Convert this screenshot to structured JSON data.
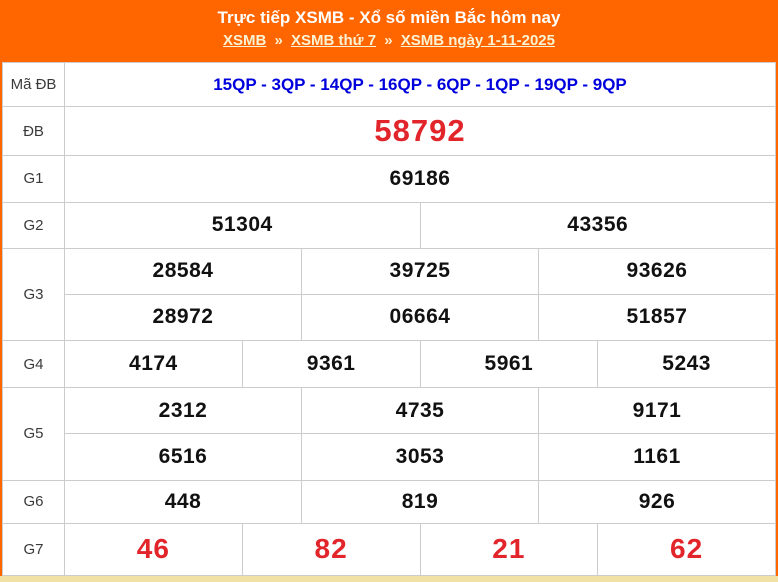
{
  "header": {
    "title": "Trực tiếp XSMB - Xổ số miền Bắc hôm nay",
    "separator": "»",
    "breadcrumb": [
      {
        "label": "XSMB"
      },
      {
        "label": "XSMB thứ 7"
      },
      {
        "label": "XSMB ngày 1-11-2025"
      }
    ]
  },
  "results_table": {
    "rows": [
      {
        "key": "ma-db",
        "label": "Mã ĐB",
        "lines": [
          [
            "15QP - 3QP - 14QP - 16QP - 6QP - 1QP - 19QP - 9QP"
          ]
        ]
      },
      {
        "key": "db",
        "label": "ĐB",
        "lines": [
          [
            "58792"
          ]
        ]
      },
      {
        "key": "g1",
        "label": "G1",
        "lines": [
          [
            "69186"
          ]
        ]
      },
      {
        "key": "g2",
        "label": "G2",
        "lines": [
          [
            "51304",
            "43356"
          ]
        ]
      },
      {
        "key": "g3",
        "label": "G3",
        "lines": [
          [
            "28584",
            "39725",
            "93626"
          ],
          [
            "28972",
            "06664",
            "51857"
          ]
        ]
      },
      {
        "key": "g4",
        "label": "G4",
        "lines": [
          [
            "4174",
            "9361",
            "5961",
            "5243"
          ]
        ]
      },
      {
        "key": "g5",
        "label": "G5",
        "lines": [
          [
            "2312",
            "4735",
            "9171"
          ],
          [
            "6516",
            "3053",
            "1161"
          ]
        ]
      },
      {
        "key": "g6",
        "label": "G6",
        "lines": [
          [
            "448",
            "819",
            "926"
          ]
        ]
      },
      {
        "key": "g7",
        "label": "G7",
        "lines": [
          [
            "46",
            "82",
            "21",
            "62"
          ]
        ]
      }
    ]
  },
  "colors": {
    "brand": "#FF6600",
    "crumb": "#FAF3D3",
    "hot-red": "#E2242B",
    "code-blue": "#0000DD",
    "strip": "#F1E1A4"
  }
}
